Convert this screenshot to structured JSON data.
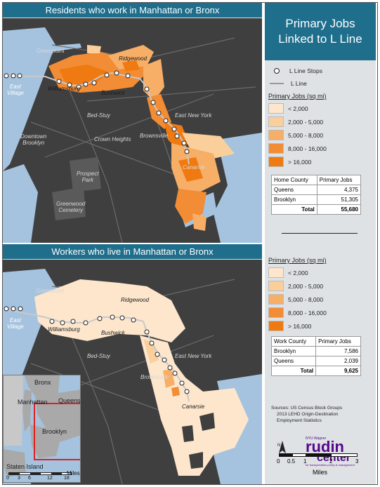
{
  "map_top": {
    "header": "Residents who work in Manhattan or Bronx",
    "labels": {
      "greenpoint": "Greenpoint",
      "ridgewood": "Ridgewood",
      "east_village": "East\nVillage",
      "williamsburg": "Williamsburg",
      "bushwick": "Bushwick",
      "bed_stuy": "Bed-Stuy",
      "east_new_york": "East New York",
      "downtown_brooklyn": "Downtown\nBrooklyn",
      "crown_heights": "Crown Heights",
      "brownsville": "Brownsville",
      "canarsie": "Canarsie",
      "prospect_park": "Prospect\nPark",
      "greenwood_cemetery": "Greenwood\nCemetery"
    }
  },
  "map_bottom": {
    "header": "Workers who live in Manhattan or Bronx",
    "labels": {
      "greenpoint": "Greenpoint",
      "ridgewood": "Ridgewood",
      "east_village": "East\nVillage",
      "williamsburg": "Williamsburg",
      "bushwick": "Bushwick",
      "bed_stuy": "Bed-Stuy",
      "east_new_york": "East New York",
      "brownsville": "Brownsville",
      "canarsie": "Canarsie"
    }
  },
  "panel": {
    "title_line1": "Primary Jobs",
    "title_line2": "Linked to L Line",
    "legend_stops": "L Line Stops",
    "legend_line": "L Line",
    "legend_title": "Primary Jobs (sq mi)",
    "classes": [
      {
        "label": "< 2,000",
        "color": "#fde6cc"
      },
      {
        "label": "2,000 - 5,000",
        "color": "#fbcf9b"
      },
      {
        "label": "5,000 - 8,000",
        "color": "#f7ae66"
      },
      {
        "label": "8,000 - 16,000",
        "color": "#f28c35"
      },
      {
        "label": "> 16,000",
        "color": "#ef7a12"
      }
    ],
    "table_home": {
      "header": [
        "Home County",
        "Primary Jobs"
      ],
      "rows": [
        [
          "Queens",
          "4,375"
        ],
        [
          "Brooklyn",
          "51,305"
        ]
      ],
      "total_label": "Total",
      "total_value": "55,680"
    },
    "legend_title_2": "Primary Jobs (sq mi)",
    "table_work": {
      "header": [
        "Work County",
        "Primary Jobs"
      ],
      "rows": [
        [
          "Brooklyn",
          "7,586"
        ],
        [
          "Queens",
          "2,039"
        ]
      ],
      "total_label": "Total",
      "total_value": "9,625"
    },
    "sources": [
      "Sources: US Census Block Groups",
      "2013 LEHD Origin-Destination",
      "Employment Statistics"
    ],
    "logo_small": "NYU Wagner",
    "logo_rudin": "rudin",
    "logo_center": "center",
    "logo_tag": "for transportation policy & management",
    "scale_ticks": [
      "0",
      "0.5",
      "1",
      "2",
      "3"
    ],
    "scale_unit": "Miles"
  },
  "inset": {
    "bronx": "Bronx",
    "manhattan": "Manhattan",
    "queens": "Queens",
    "brooklyn": "Brooklyn",
    "staten_island": "Staten Island",
    "scale_ticks": [
      "0",
      "3",
      "6",
      "12",
      "18"
    ],
    "scale_unit": "Miles"
  },
  "colors": {
    "header_blue": "#1e6e8c",
    "land": "#3f3f3f",
    "water": "#a5c3df",
    "orange_dark": "#ef7a12"
  }
}
